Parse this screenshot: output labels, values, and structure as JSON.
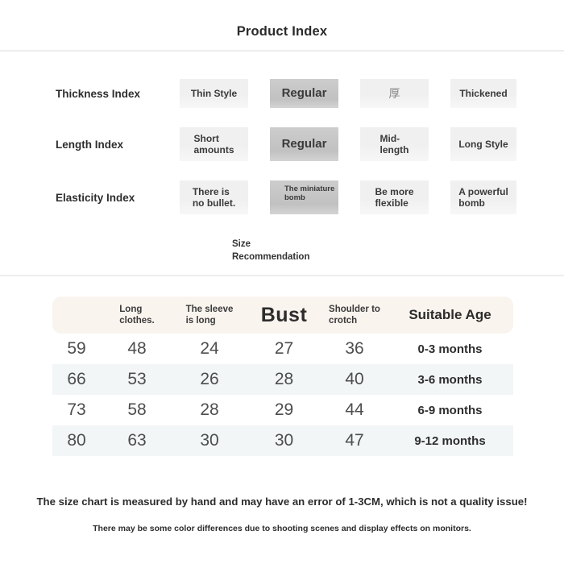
{
  "title": "Product Index",
  "index_section": {
    "rows": [
      {
        "label": "Thickness Index",
        "options": [
          {
            "label": "Thin Style",
            "selected": false
          },
          {
            "label": "Regular",
            "selected": true
          },
          {
            "label": "厚",
            "selected": false
          },
          {
            "label": "Thickened",
            "selected": false
          }
        ]
      },
      {
        "label": "Length Index",
        "options": [
          {
            "label": "Short\namounts",
            "selected": false
          },
          {
            "label": "Regular",
            "selected": true
          },
          {
            "label": "Mid-\nlength",
            "selected": false
          },
          {
            "label": "Long Style",
            "selected": false
          }
        ]
      },
      {
        "label": "Elasticity Index",
        "options": [
          {
            "label": "There is\nno bullet.",
            "selected": false
          },
          {
            "label": "The miniature\nbomb",
            "selected": true
          },
          {
            "label": "Be more\nflexible",
            "selected": false
          },
          {
            "label": "A powerful\nbomb",
            "selected": false
          }
        ]
      }
    ]
  },
  "size_section": {
    "heading": "Size\nRecommendation",
    "table": {
      "headers": [
        "",
        "Long\nclothes.",
        "The sleeve\nis long",
        "Bust",
        "Shoulder to\ncrotch",
        "Suitable Age"
      ],
      "rows": [
        [
          "59",
          "48",
          "24",
          "27",
          "36",
          "0-3 months"
        ],
        [
          "66",
          "53",
          "26",
          "28",
          "40",
          "3-6 months"
        ],
        [
          "73",
          "58",
          "28",
          "29",
          "44",
          "6-9 months"
        ],
        [
          "80",
          "63",
          "30",
          "30",
          "47",
          "9-12 months"
        ]
      ]
    }
  },
  "footer": {
    "note_primary": "The size chart is measured by hand and may have an error of 1-3CM, which is not a quality issue!",
    "note_secondary": "There may be some color differences due to shooting scenes and display effects on monitors."
  },
  "colors": {
    "option_bg": "#f0f0f1",
    "selected_option_bg": "#c6c6c6",
    "table_header_bg": "#faf4ee",
    "table_stripe_bg": "#f2f6f6",
    "text_dark": "#2f2f2f",
    "number_text": "#4d4d4d"
  }
}
